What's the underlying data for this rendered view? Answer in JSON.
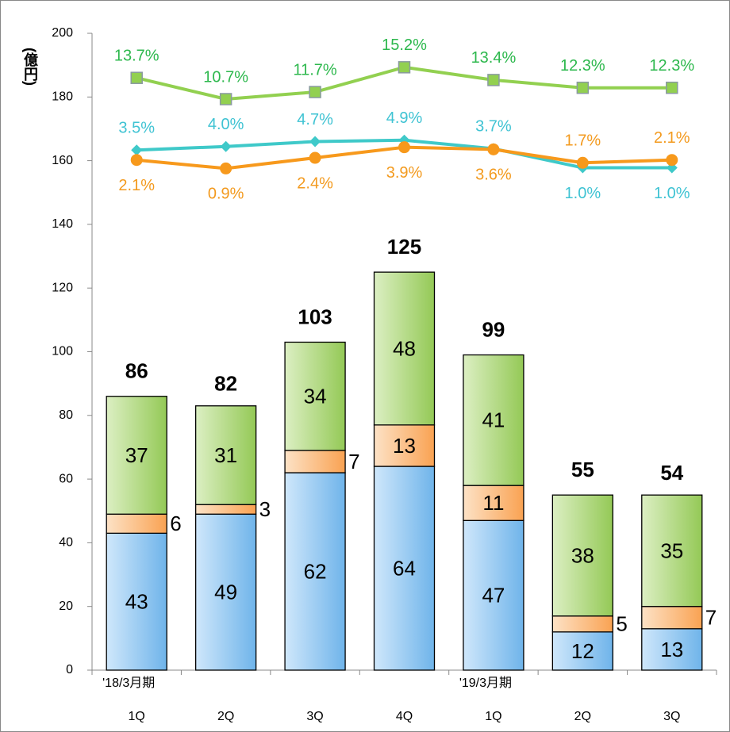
{
  "chart_data": {
    "type": "bar",
    "y_label": "(億円)",
    "categories": [
      "1Q",
      "2Q",
      "3Q",
      "4Q",
      "1Q",
      "2Q",
      "3Q"
    ],
    "category_groups": [
      "'18/3月期",
      null,
      null,
      null,
      "'19/3月期",
      null,
      null
    ],
    "stacked": true,
    "series": [
      {
        "color": "#7fbcec",
        "values": [
          43,
          49,
          62,
          64,
          47,
          12,
          13
        ]
      },
      {
        "color": "#fbb067",
        "values": [
          6,
          3,
          7,
          13,
          11,
          5,
          7
        ]
      },
      {
        "color": "#a9d46f",
        "values": [
          37,
          31,
          34,
          48,
          41,
          38,
          35
        ]
      }
    ],
    "totals": [
      86,
      82,
      103,
      125,
      99,
      55,
      54
    ],
    "lines": [
      {
        "type": "line",
        "axis": "y2",
        "color": "#92d050",
        "label_color": "#2db84d",
        "marker": "square",
        "values": [
          13.7,
          10.7,
          11.7,
          15.2,
          13.4,
          12.3,
          12.3
        ],
        "value_labels": [
          "13.7%",
          "10.7%",
          "11.7%",
          "15.2%",
          "13.4%",
          "12.3%",
          "12.3%"
        ]
      },
      {
        "type": "line",
        "axis": "y2",
        "color": "#3fc9c9",
        "label_color": "#3fc3d3",
        "marker": "diamond",
        "values": [
          3.5,
          4.0,
          4.7,
          4.9,
          3.7,
          1.0,
          1.0
        ],
        "value_labels": [
          "3.5%",
          "4.0%",
          "4.7%",
          "4.9%",
          "3.7%",
          "1.0%",
          "1.0%"
        ]
      },
      {
        "type": "line",
        "axis": "y2",
        "color": "#f7991c",
        "label_color": "#f39a1e",
        "marker": "circle",
        "values": [
          2.1,
          0.9,
          2.4,
          3.9,
          3.6,
          1.7,
          2.1
        ],
        "value_labels": [
          "2.1%",
          "0.9%",
          "2.4%",
          "3.9%",
          "3.6%",
          "1.7%",
          "2.1%"
        ]
      }
    ],
    "ylim": [
      0,
      200
    ],
    "yticks": [
      0,
      20,
      40,
      60,
      80,
      100,
      120,
      140,
      160,
      180,
      200
    ],
    "y2lim": [
      -70,
      20
    ]
  }
}
